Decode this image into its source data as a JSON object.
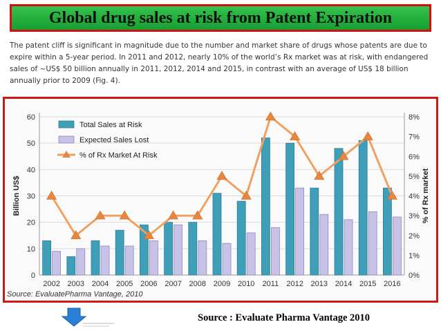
{
  "title": "Global drug sales at risk from Patent Expiration",
  "intro_text": "The patent cliff is significant in magnitude due to the number and market share of drugs whose patents are due to expire within a 5-year period. In 2011 and 2012, nearly 10% of the world’s Rx market was at risk, with endangered sales of ~US$ 50 billion annually in 2011, 2012, 2014 and 2015, in contrast with an average of US$ 18 billion annually prior to 2009 (Fig. 4).",
  "chart_source": "Source: EvaluatePharma Vantage, 2010",
  "footer_source": "Source : Evaluate Pharma Vantage 2010",
  "chart_data": {
    "type": "bar",
    "categories": [
      "2002",
      "2003",
      "2004",
      "2005",
      "2006",
      "2007",
      "2008",
      "2009",
      "2010",
      "2011",
      "2012",
      "2013",
      "2014",
      "2015",
      "2016"
    ],
    "series": [
      {
        "name": "Total Sales at Risk",
        "type": "bar",
        "axis": "left",
        "color": "#3f9fb8",
        "values": [
          13,
          7,
          13,
          17,
          19,
          20,
          20,
          31,
          28,
          52,
          50,
          33,
          48,
          51,
          33
        ]
      },
      {
        "name": "Expected Sales Lost",
        "type": "bar",
        "axis": "left",
        "color": "#c8c3e6",
        "values": [
          9,
          10,
          11,
          11,
          13,
          19,
          13,
          12,
          16,
          18,
          33,
          23,
          21,
          24,
          22
        ]
      },
      {
        "name": "% of Rx Market At Risk",
        "type": "line",
        "axis": "right",
        "color": "#f0a060",
        "marker_color": "#e8853f",
        "values": [
          4,
          2,
          3,
          3,
          2,
          3,
          3,
          5,
          4,
          8,
          7,
          5,
          6,
          7,
          4
        ]
      }
    ],
    "ylabel": "Billion US$",
    "y2label": "% of Rx market",
    "ylim": [
      0,
      60
    ],
    "yticks": [
      0,
      10,
      20,
      30,
      40,
      50,
      60
    ],
    "y2lim": [
      0,
      8
    ],
    "y2ticks": [
      "0%",
      "1%",
      "2%",
      "3%",
      "4%",
      "5%",
      "6%",
      "7%",
      "8%"
    ],
    "grid": "horizontal",
    "legend_position": "top-left"
  }
}
